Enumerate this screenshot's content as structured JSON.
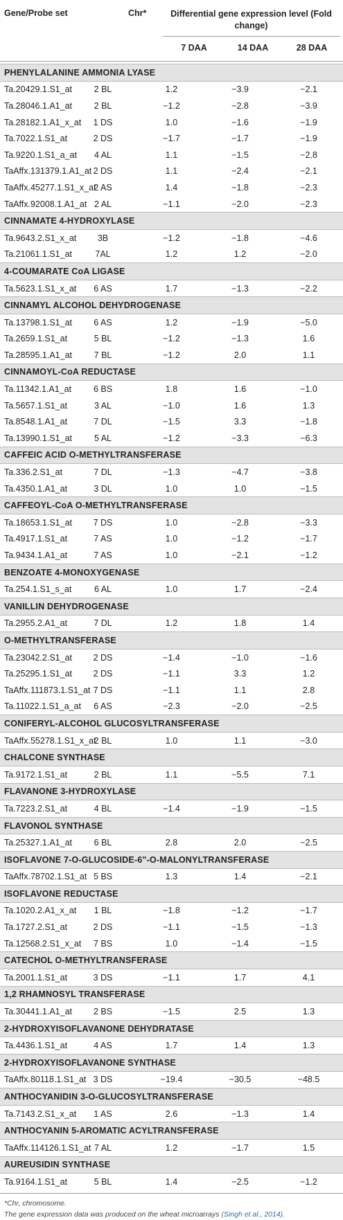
{
  "header": {
    "gene_col": "Gene/Probe set",
    "chr_col": "Chr*",
    "group_col": "Differential gene expression level (Fold change)",
    "stages": [
      "7 DAA",
      "14 DAA",
      "28 DAA"
    ]
  },
  "sections": [
    {
      "title": "PHENYLALANINE AMMONIA LYASE",
      "rows": [
        [
          "Ta.20429.1.S1_at",
          "2 BL",
          "1.2",
          "−3.9",
          "−2.1"
        ],
        [
          "Ta.28046.1.A1_at",
          "2 BL",
          "−1.2",
          "−2.8",
          "−3.9"
        ],
        [
          "Ta.28182.1.A1_x_at",
          "1 DS",
          "1.0",
          "−1.6",
          "−1.9"
        ],
        [
          "Ta.7022.1.S1_at",
          "2 DS",
          "−1.7",
          "−1.7",
          "−1.9"
        ],
        [
          "Ta.9220.1.S1_a_at",
          "4 AL",
          "1.1",
          "−1.5",
          "−2.8"
        ],
        [
          "TaAffx.131379.1.A1_at",
          "2 DS",
          "1.1",
          "−2.4",
          "−2.1"
        ],
        [
          "TaAffx.45277.1.S1_x_at",
          "2 AS",
          "1.4",
          "−1.8",
          "−2.3"
        ],
        [
          "TaAffx.92008.1.A1_at",
          "2 AL",
          "−1.1",
          "−2.0",
          "−2.3"
        ]
      ]
    },
    {
      "title": "CINNAMATE 4-HYDROXYLASE",
      "rows": [
        [
          "Ta.9643.2.S1_x_at",
          "3B",
          "−1.2",
          "−1.8",
          "−4.6"
        ],
        [
          "Ta.21061.1.S1_at",
          "7AL",
          "1.2",
          "1.2",
          "−2.0"
        ]
      ]
    },
    {
      "title": "4-COUMARATE CoA LIGASE",
      "rows": [
        [
          "Ta.5623.1.S1_x_at",
          "6 AS",
          "1.7",
          "−1.3",
          "−2.2"
        ]
      ]
    },
    {
      "title": "CINNAMYL ALCOHOL DEHYDROGENASE",
      "rows": [
        [
          "Ta.13798.1.S1_at",
          "6 AS",
          "1.2",
          "−1.9",
          "−5.0"
        ],
        [
          "Ta.2659.1.S1_at",
          "5 BL",
          "−1.2",
          "−1.3",
          "1.6"
        ],
        [
          "Ta.28595.1.A1_at",
          "7 BL",
          "−1.2",
          "2.0",
          "1.1"
        ]
      ]
    },
    {
      "title": "CINNAMOYL-CoA REDUCTASE",
      "rows": [
        [
          "Ta.11342.1.A1_at",
          "6 BS",
          "1.8",
          "1.6",
          "−1.0"
        ],
        [
          "Ta.5657.1.S1_at",
          "3 AL",
          "−1.0",
          "1.6",
          "1.3"
        ],
        [
          "Ta.8548.1.A1_at",
          "7 DL",
          "−1.5",
          "3.3",
          "−1.8"
        ],
        [
          "Ta.13990.1.S1_at",
          "5 AL",
          "−1.2",
          "−3.3",
          "−6.3"
        ]
      ]
    },
    {
      "title": "CAFFEIC ACID O-METHYLTRANSFERASE",
      "rows": [
        [
          "Ta.336.2.S1_at",
          "7 DL",
          "−1.3",
          "−4.7",
          "−3.8"
        ],
        [
          "Ta.4350.1.A1_at",
          "3 DL",
          "1.0",
          "1.0",
          "−1.5"
        ]
      ]
    },
    {
      "title": "CAFFEOYL-CoA O-METHYLTRANSFERASE",
      "rows": [
        [
          "Ta.18653.1.S1_at",
          "7 DS",
          "1.0",
          "−2.8",
          "−3.3"
        ],
        [
          "Ta.4917.1.S1_at",
          "7 AS",
          "1.0",
          "−1.2",
          "−1.7"
        ],
        [
          "Ta.9434.1.A1_at",
          "7 AS",
          "1.0",
          "−2.1",
          "−1.2"
        ]
      ]
    },
    {
      "title": "BENZOATE 4-MONOXYGENASE",
      "rows": [
        [
          "Ta.254.1.S1_s_at",
          "6 AL",
          "1.0",
          "1.7",
          "−2.4"
        ]
      ]
    },
    {
      "title": "VANILLIN DEHYDROGENASE",
      "rows": [
        [
          "Ta.2955.2.A1_at",
          "7 DL",
          "1.2",
          "1.8",
          "1.4"
        ]
      ]
    },
    {
      "title": "O-METHYLTRANSFERASE",
      "rows": [
        [
          "Ta.23042.2.S1_at",
          "2 DS",
          "−1.4",
          "−1.0",
          "−1.6"
        ],
        [
          "Ta.25295.1.S1_at",
          "2 DS",
          "−1.1",
          "3.3",
          "1.2"
        ],
        [
          "TaAffx.111873.1.S1_at",
          "7 DS",
          "−1.1",
          "1.1",
          "2.8"
        ],
        [
          "Ta.11022.1.S1_a_at",
          "6 AS",
          "−2.3",
          "−2.0",
          "−2.5"
        ]
      ]
    },
    {
      "title": "CONIFERYL-ALCOHOL GLUCOSYLTRANSFERASE",
      "rows": [
        [
          "TaAffx.55278.1.S1_x_at",
          "2 BL",
          "1.0",
          "1.1",
          "−3.0"
        ]
      ]
    },
    {
      "title": "CHALCONE SYNTHASE",
      "rows": [
        [
          "Ta.9172.1.S1_at",
          "2 BL",
          "1.1",
          "−5.5",
          "7.1"
        ]
      ]
    },
    {
      "title": "FLAVANONE 3-HYDROXYLASE",
      "rows": [
        [
          "Ta.7223.2.S1_at",
          "4 BL",
          "−1.4",
          "−1.9",
          "−1.5"
        ]
      ]
    },
    {
      "title": "FLAVONOL SYNTHASE",
      "rows": [
        [
          "Ta.25327.1.A1_at",
          "6 BL",
          "2.8",
          "2.0",
          "−2.5"
        ]
      ]
    },
    {
      "title": "ISOFLAVONE 7-O-GLUCOSIDE-6\"-O-MALONYLTRANSFERASE",
      "rows": [
        [
          "TaAffx.78702.1.S1_at",
          "5 BS",
          "1.3",
          "1.4",
          "−2.1"
        ]
      ]
    },
    {
      "title": "ISOFLAVONE REDUCTASE",
      "rows": [
        [
          "Ta.1020.2.A1_x_at",
          "1 BL",
          "−1.8",
          "−1.2",
          "−1.7"
        ],
        [
          "Ta.1727.2.S1_at",
          "2 DS",
          "−1.1",
          "−1.5",
          "−1.3"
        ],
        [
          "Ta.12568.2.S1_x_at",
          "7 BS",
          "1.0",
          "−1.4",
          "−1.5"
        ]
      ]
    },
    {
      "title": "CATECHOL O-METHYLTRANSFERASE",
      "rows": [
        [
          "Ta.2001.1.S1_at",
          "3 DS",
          "−1.1",
          "1.7",
          "4.1"
        ]
      ]
    },
    {
      "title": "1,2 RHAMNOSYL TRANSFERASE",
      "rows": [
        [
          "Ta.30441.1.A1_at",
          "2 BS",
          "−1.5",
          "2.5",
          "1.3"
        ]
      ]
    },
    {
      "title": "2-HYDROXYISOFLAVANONE DEHYDRATASE",
      "rows": [
        [
          "Ta.4436.1.S1_at",
          "4 AS",
          "1.7",
          "1.4",
          "1.3"
        ]
      ]
    },
    {
      "title": "2-HYDROXYISOFLAVANONE SYNTHASE",
      "rows": [
        [
          "TaAffx.80118.1.S1_at",
          "3 DS",
          "−19.4",
          "−30.5",
          "−48.5"
        ]
      ]
    },
    {
      "title": "ANTHOCYANIDIN 3-O-GLUCOSYLTRANSFERASE",
      "rows": [
        [
          "Ta.7143.2.S1_x_at",
          "1 AS",
          "2.6",
          "−1.3",
          "1.4"
        ]
      ]
    },
    {
      "title": "ANTHOCYANIN 5-AROMATIC ACYLTRANSFERASE",
      "rows": [
        [
          "TaAffx.114126.1.S1_at",
          "7 AL",
          "1.2",
          "−1.7",
          "1.5"
        ]
      ]
    },
    {
      "title": "AUREUSIDIN SYNTHASE",
      "rows": [
        [
          "Ta.9164.1.S1_at",
          "5 BL",
          "1.4",
          "−2.5",
          "−1.2"
        ]
      ]
    }
  ],
  "footnotes": {
    "chr_note": "*Chr, chromosome.",
    "data_note": "The gene expression data was produced on the wheat microarrays",
    "citation": "(Singh et al., 2014)",
    "end": "."
  }
}
